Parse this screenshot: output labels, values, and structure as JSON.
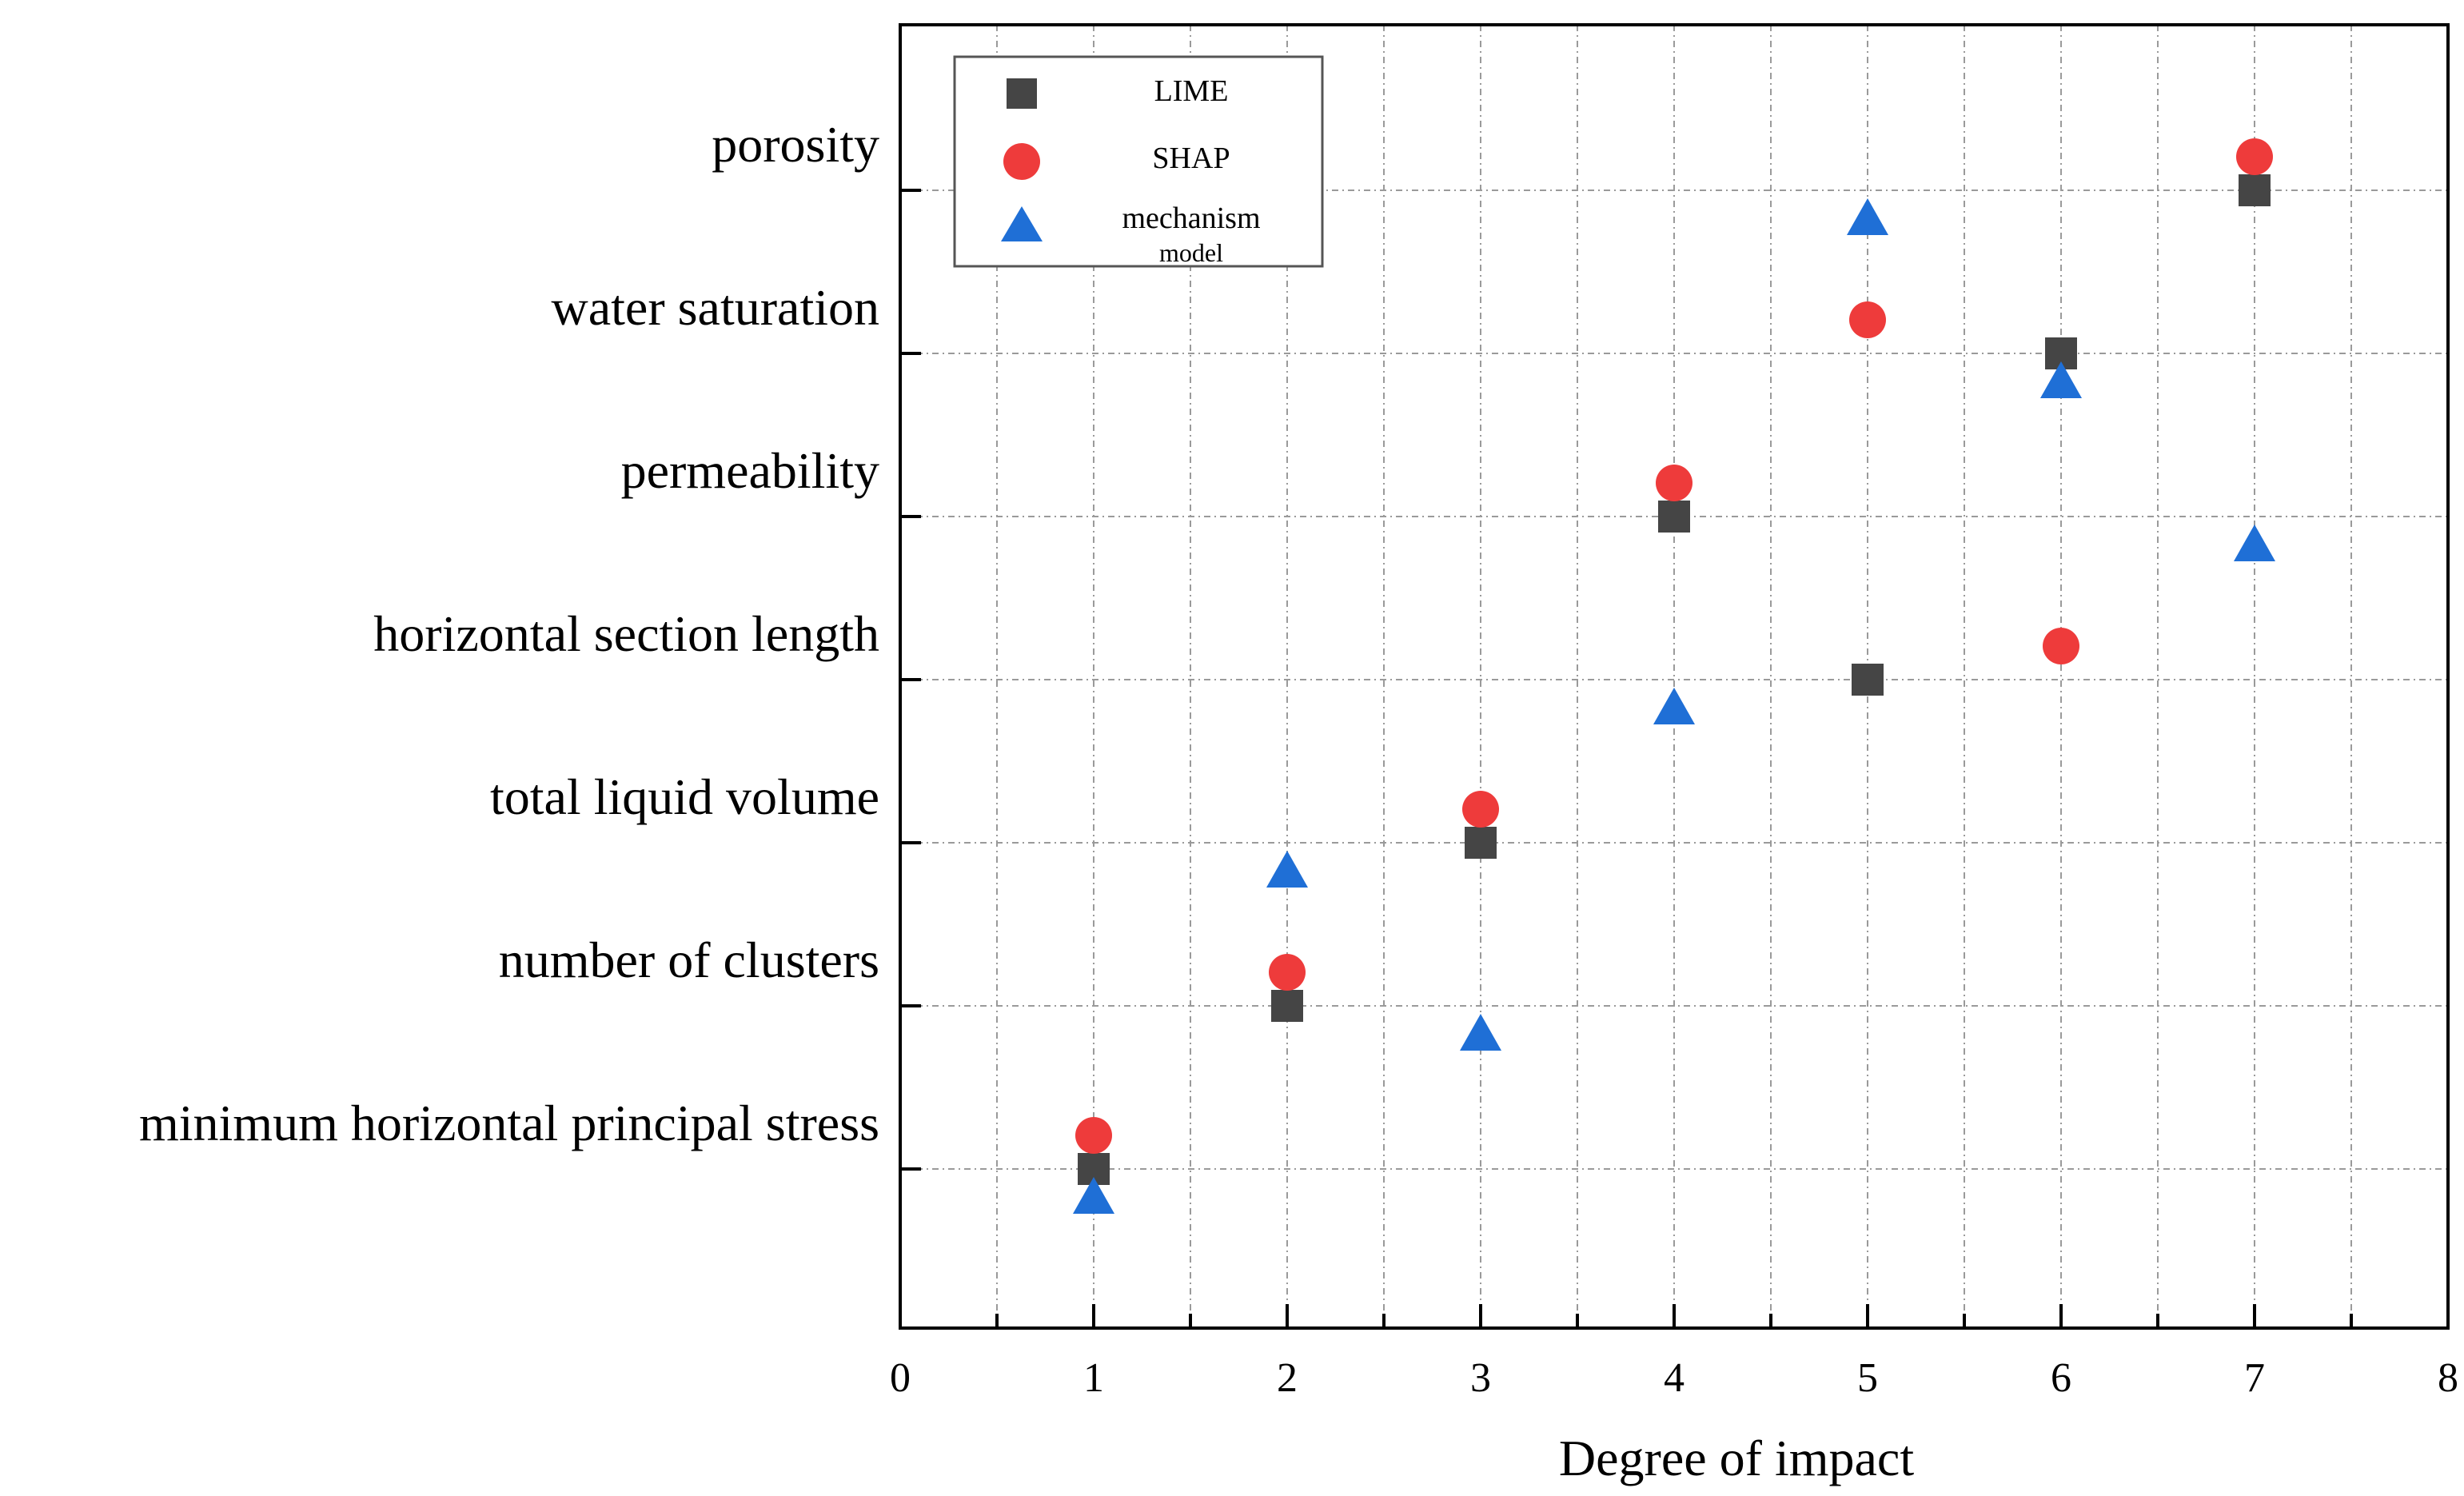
{
  "chart_data": {
    "type": "scatter",
    "title": "",
    "xlabel": "Degree of impact",
    "ylabel": "",
    "xlim": [
      0,
      8
    ],
    "xticks": [
      0,
      1,
      2,
      3,
      4,
      5,
      6,
      7,
      8
    ],
    "grid": true,
    "legend_position": "top-left",
    "categories": [
      "porosity",
      "water saturation",
      "permeability",
      "horizontal section length",
      "total liquid volume",
      "number of clusters",
      "minimum horizontal principal stress"
    ],
    "series": [
      {
        "name": "LIME",
        "marker": "square",
        "color": "#454545",
        "values": [
          7,
          6,
          4,
          5,
          3,
          2,
          1
        ]
      },
      {
        "name": "SHAP",
        "marker": "circle",
        "color": "#ee3b3b",
        "values": [
          7,
          5,
          4,
          6,
          3,
          2,
          1
        ]
      },
      {
        "name": "mechanism model",
        "legend_lines": [
          "mechanism",
          "model"
        ],
        "marker": "triangle",
        "color": "#1f6fd6",
        "values": [
          5,
          6,
          7,
          4,
          2,
          3,
          1
        ]
      }
    ]
  }
}
